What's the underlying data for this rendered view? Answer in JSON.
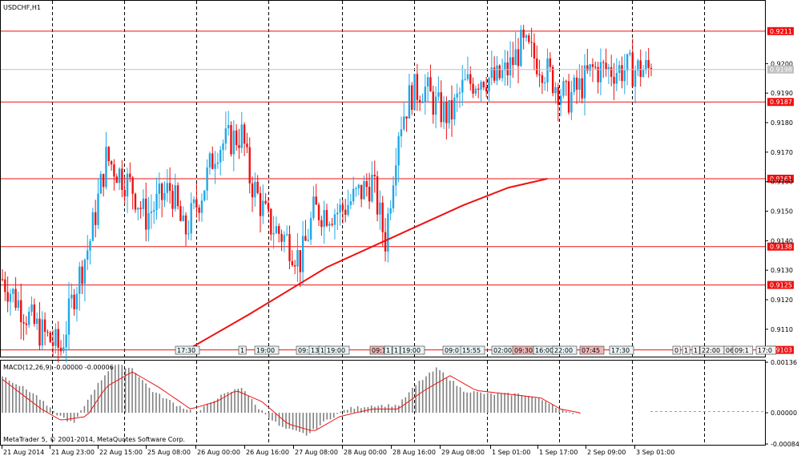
{
  "window": {
    "symbol_title": "USDCHF,H1",
    "copyright": "MetaTrader 5, © 2001-2014, MetaQuotes Software Corp."
  },
  "colors": {
    "bull": "#1fa8e8",
    "bear": "#ee1111",
    "level_line": "#ee1111",
    "ma_line": "#ee1111",
    "macd_hist": "#808080",
    "macd_signal": "#ee1111",
    "grid": "#000000",
    "label_bg_red": "#ee1111",
    "label_bg_current": "#c0c0c0"
  },
  "price_axis": {
    "ticks": [
      "0.9200",
      "0.9190",
      "0.9180",
      "0.9170",
      "0.9160",
      "0.9150",
      "0.9140",
      "0.9130",
      "0.9120",
      "0.9110"
    ],
    "current_price": "0.9198",
    "levels": [
      "0.9211",
      "0.9187",
      "0.9161",
      "0.9138",
      "0.9125",
      "0.9103"
    ]
  },
  "time_axis": {
    "labels": [
      "21 Aug 2014",
      "21 Aug 23:00",
      "22 Aug 15:00",
      "25 Aug 08:00",
      "26 Aug 00:00",
      "26 Aug 16:00",
      "27 Aug 08:00",
      "28 Aug 00:00",
      "28 Aug 16:00",
      "29 Aug 08:00",
      "1 Sep 01:00",
      "1 Sep 17:00",
      "2 Sep 09:00",
      "3 Sep 01:00"
    ]
  },
  "event_markers": {
    "row1": [
      "17:30",
      "1",
      "19:00",
      "09:",
      "13",
      "16",
      "19:00",
      "09:1",
      "1",
      "1",
      "19:00",
      "09:0",
      "15:55",
      "02:00",
      "09:30",
      "16:00",
      "22:00",
      "07:45",
      "17:30"
    ],
    "row2": [
      "0",
      "1",
      "1",
      "22:00",
      "06",
      "09:1",
      "17:0"
    ]
  },
  "macd": {
    "title": "MACD(12,26,9) -0.00000 -0.00006",
    "ticks": [
      "0.00136",
      "0.00000",
      "-0.00084"
    ]
  },
  "chart_data": {
    "type": "candlestick",
    "symbol": "USDCHF",
    "timeframe": "H1",
    "price_range": [
      0.9101,
      0.9221
    ],
    "close_start": 0.9127,
    "close_end": 0.9198,
    "close_path": [
      [
        0,
        0.9127
      ],
      [
        0.05,
        0.9111
      ],
      [
        0.09,
        0.9103
      ],
      [
        0.11,
        0.9122
      ],
      [
        0.135,
        0.914
      ],
      [
        0.16,
        0.9168
      ],
      [
        0.2,
        0.9158
      ],
      [
        0.22,
        0.9148
      ],
      [
        0.26,
        0.9158
      ],
      [
        0.28,
        0.9142
      ],
      [
        0.31,
        0.9158
      ],
      [
        0.33,
        0.9172
      ],
      [
        0.37,
        0.9176
      ],
      [
        0.38,
        0.9162
      ],
      [
        0.41,
        0.9146
      ],
      [
        0.44,
        0.914
      ],
      [
        0.46,
        0.9133
      ],
      [
        0.48,
        0.915
      ],
      [
        0.52,
        0.915
      ],
      [
        0.57,
        0.916
      ],
      [
        0.59,
        0.914
      ],
      [
        0.61,
        0.9178
      ],
      [
        0.63,
        0.919
      ],
      [
        0.65,
        0.9192
      ],
      [
        0.67,
        0.9185
      ],
      [
        0.69,
        0.9182
      ],
      [
        0.71,
        0.9192
      ],
      [
        0.74,
        0.9196
      ],
      [
        0.76,
        0.9194
      ],
      [
        0.78,
        0.9198
      ],
      [
        0.8,
        0.9206
      ],
      [
        0.83,
        0.92
      ],
      [
        0.85,
        0.9194
      ],
      [
        0.87,
        0.9188
      ],
      [
        0.89,
        0.9192
      ],
      [
        0.91,
        0.9198
      ]
    ],
    "moving_average": [
      [
        0.285,
        0.9103
      ],
      [
        0.38,
        0.9115
      ],
      [
        0.5,
        0.9131
      ],
      [
        0.62,
        0.9143
      ],
      [
        0.71,
        0.9152
      ],
      [
        0.78,
        0.9158
      ],
      [
        0.84,
        0.9161
      ]
    ],
    "macd_range": [
      -0.00084,
      0.00136
    ],
    "macd_histogram_path": [
      [
        0,
        0.001
      ],
      [
        0.05,
        0.0005
      ],
      [
        0.08,
        0.0
      ],
      [
        0.11,
        -0.0003
      ],
      [
        0.14,
        0.0006
      ],
      [
        0.17,
        0.0013
      ],
      [
        0.2,
        0.0012
      ],
      [
        0.23,
        0.0006
      ],
      [
        0.27,
        0.0002
      ],
      [
        0.3,
        0.0
      ],
      [
        0.33,
        0.0004
      ],
      [
        0.37,
        0.0007
      ],
      [
        0.39,
        0.0002
      ],
      [
        0.43,
        -0.0004
      ],
      [
        0.47,
        -0.0006
      ],
      [
        0.5,
        -0.0002
      ],
      [
        0.53,
        0.0001
      ],
      [
        0.57,
        0.0002
      ],
      [
        0.61,
        0.0002
      ],
      [
        0.64,
        0.0008
      ],
      [
        0.67,
        0.0012
      ],
      [
        0.71,
        0.0006
      ],
      [
        0.75,
        0.0005
      ],
      [
        0.8,
        0.0005
      ],
      [
        0.84,
        0.0003
      ],
      [
        0.87,
        0.0
      ],
      [
        0.89,
        0.0
      ]
    ],
    "macd_signal_path": [
      [
        0,
        0.0009
      ],
      [
        0.06,
        0.0001
      ],
      [
        0.09,
        -0.0002
      ],
      [
        0.13,
        -0.0001
      ],
      [
        0.16,
        0.0007
      ],
      [
        0.2,
        0.0011
      ],
      [
        0.24,
        0.0007
      ],
      [
        0.29,
        0.0001
      ],
      [
        0.33,
        0.0003
      ],
      [
        0.36,
        0.0006
      ],
      [
        0.4,
        0.0003
      ],
      [
        0.44,
        -0.0003
      ],
      [
        0.48,
        -0.0005
      ],
      [
        0.52,
        -0.0001
      ],
      [
        0.57,
        0.0001
      ],
      [
        0.61,
        0.0001
      ],
      [
        0.65,
        0.0006
      ],
      [
        0.69,
        0.001
      ],
      [
        0.73,
        0.0006
      ],
      [
        0.78,
        0.0005
      ],
      [
        0.83,
        0.0004
      ],
      [
        0.86,
        0.0001
      ],
      [
        0.89,
        0.0
      ]
    ]
  }
}
